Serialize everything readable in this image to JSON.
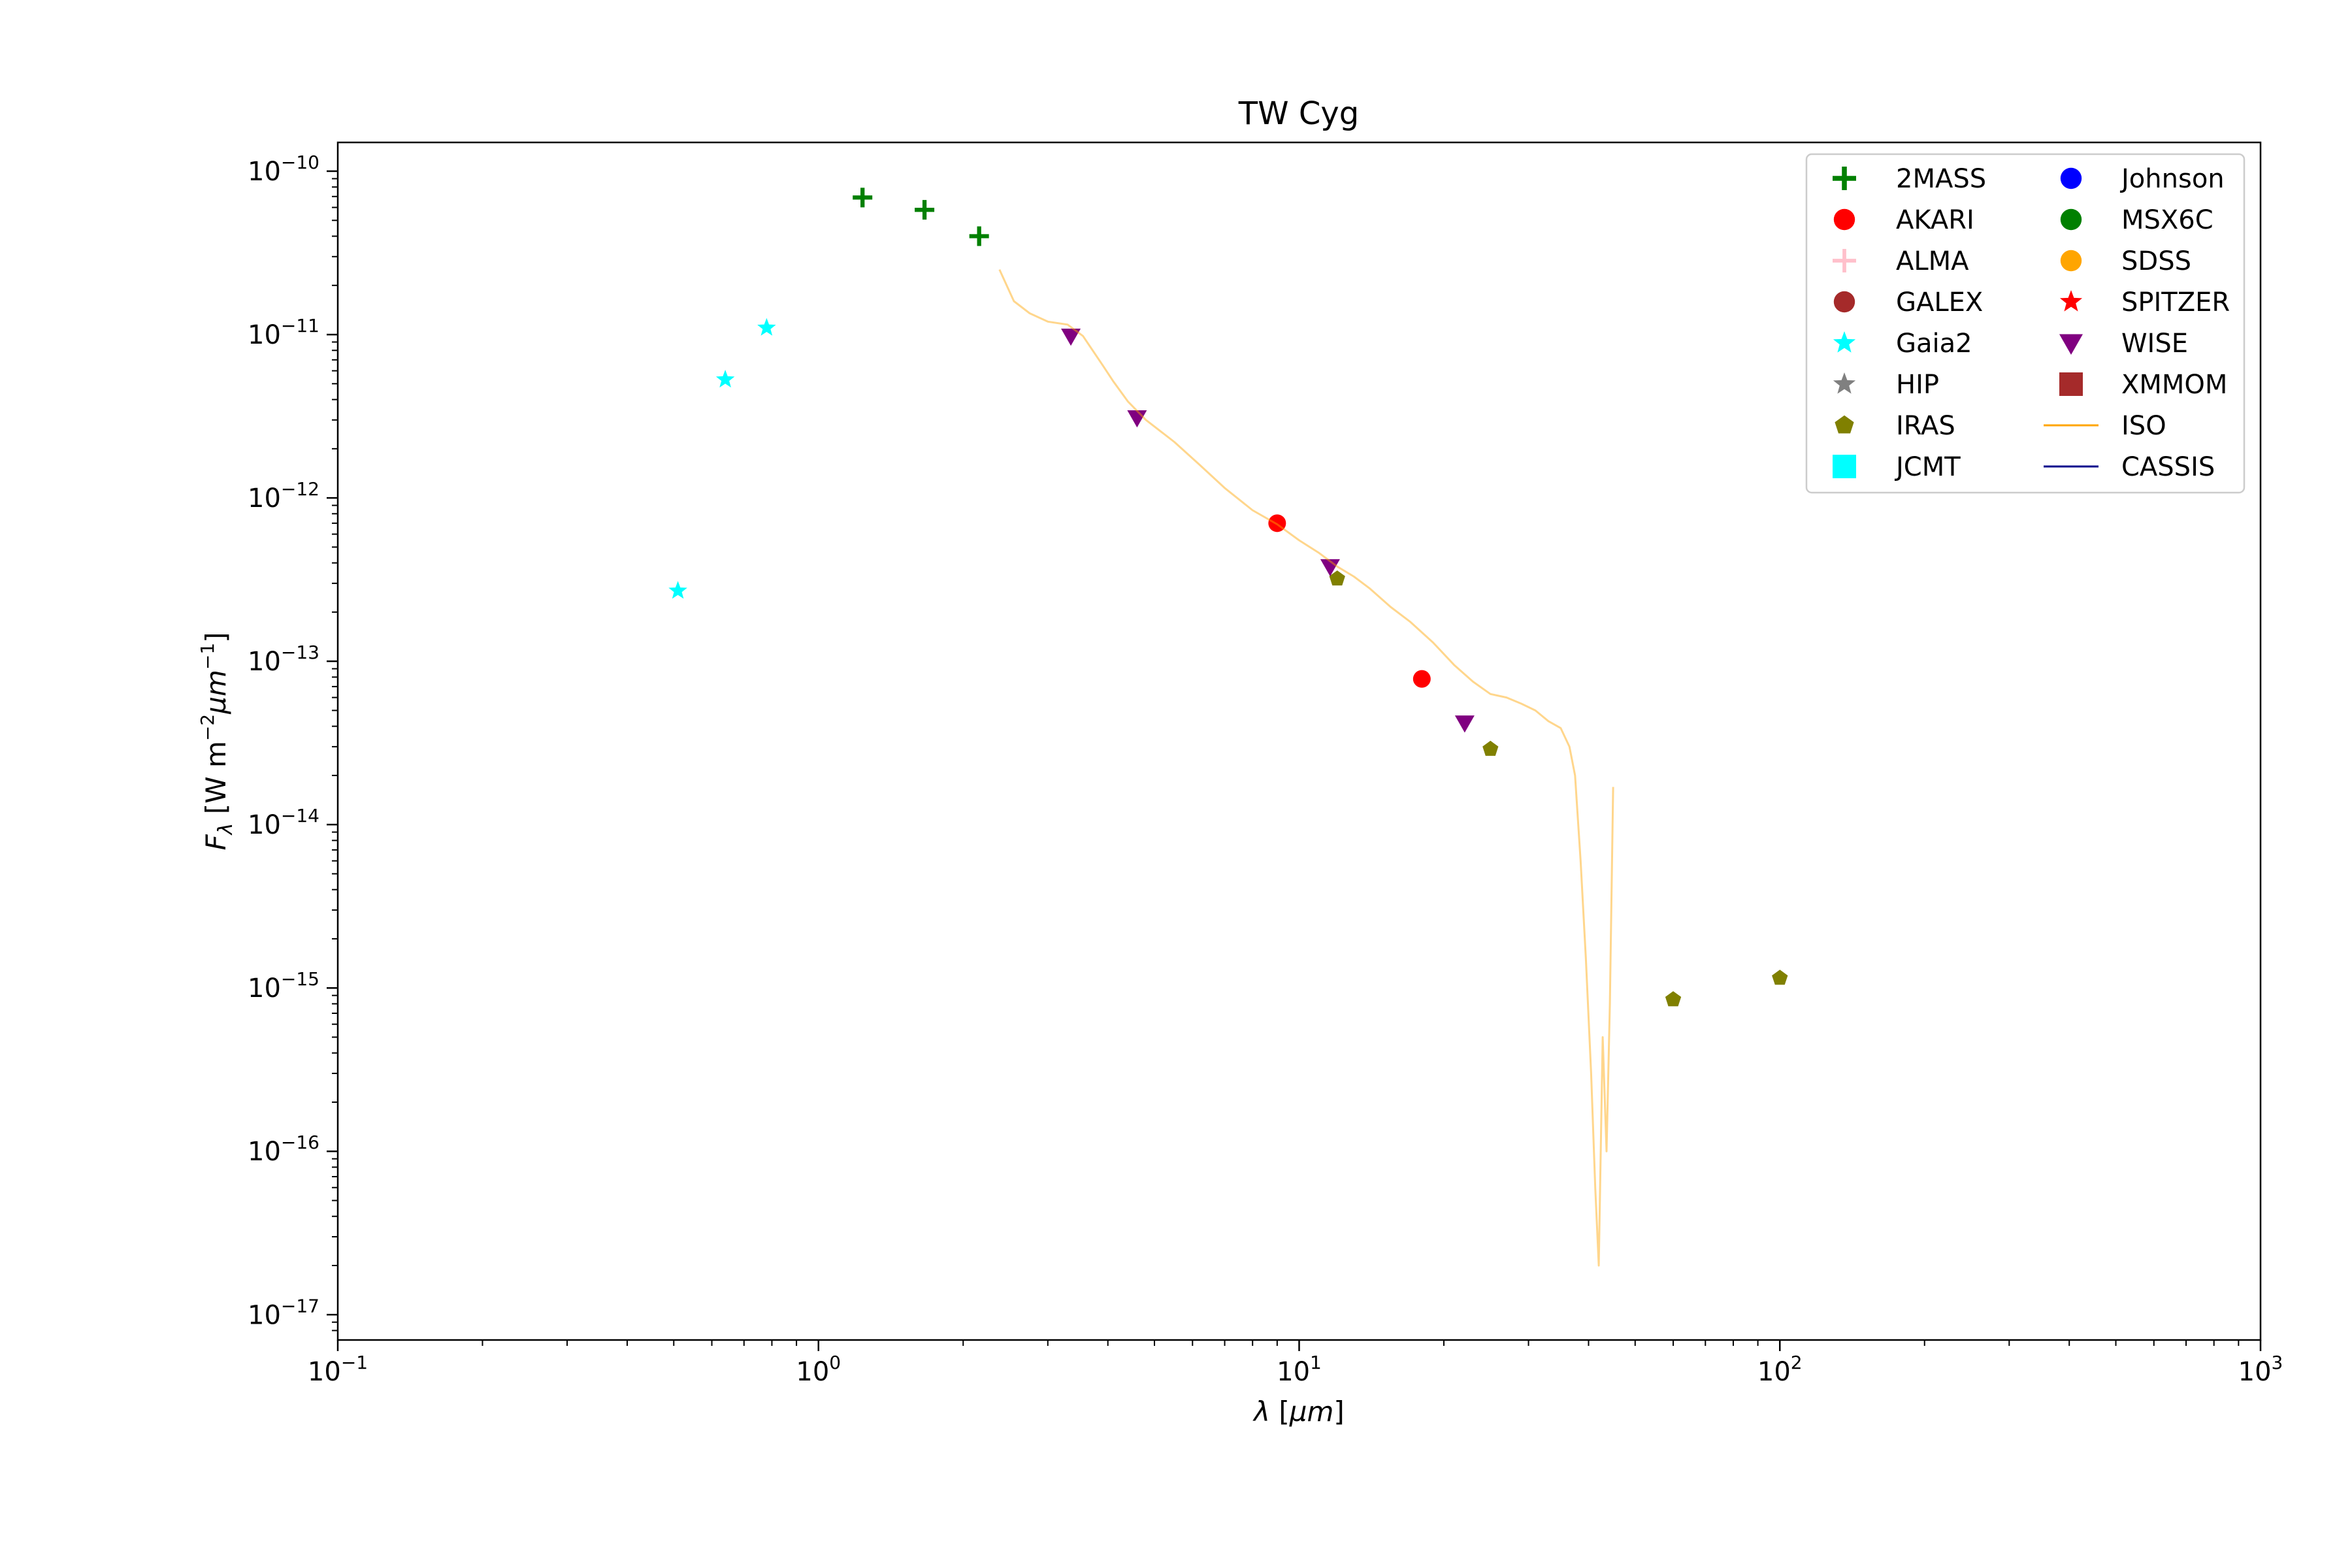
{
  "chart_data": {
    "type": "scatter",
    "title": "TW Cyg",
    "xlabel": "λ [μm]",
    "ylabel": "F_λ [W m⁻² μm⁻¹]",
    "xscale": "log",
    "yscale": "log",
    "xlim": [
      0.1,
      1000
    ],
    "ylim": [
      7e-18,
      1.5e-10
    ],
    "xticks": [
      {
        "value": 0.1,
        "base": "10",
        "exp": "−1"
      },
      {
        "value": 1,
        "base": "10",
        "exp": "0"
      },
      {
        "value": 10,
        "base": "10",
        "exp": "1"
      },
      {
        "value": 100,
        "base": "10",
        "exp": "2"
      },
      {
        "value": 1000,
        "base": "10",
        "exp": "3"
      }
    ],
    "yticks": [
      {
        "value": 1e-10,
        "base": "10",
        "exp": "−10"
      },
      {
        "value": 1e-11,
        "base": "10",
        "exp": "−11"
      },
      {
        "value": 1e-12,
        "base": "10",
        "exp": "−12"
      },
      {
        "value": 1e-13,
        "base": "10",
        "exp": "−13"
      },
      {
        "value": 1e-14,
        "base": "10",
        "exp": "−14"
      },
      {
        "value": 1e-15,
        "base": "10",
        "exp": "−15"
      },
      {
        "value": 1e-16,
        "base": "10",
        "exp": "−16"
      },
      {
        "value": 1e-17,
        "base": "10",
        "exp": "−17"
      }
    ],
    "legend_position": "top-right",
    "legend_columns": 2,
    "series": [
      {
        "name": "2MASS",
        "marker": "plus",
        "color": "#008000",
        "points": [
          [
            1.235,
            6.9e-11
          ],
          [
            1.662,
            5.8e-11
          ],
          [
            2.159,
            4e-11
          ]
        ]
      },
      {
        "name": "AKARI",
        "marker": "circle",
        "color": "#ff0000",
        "points": [
          [
            9.0,
            7e-13
          ],
          [
            18.0,
            7.8e-14
          ]
        ]
      },
      {
        "name": "ALMA",
        "marker": "thinplus",
        "color": "#ffc0cb",
        "points": []
      },
      {
        "name": "GALEX",
        "marker": "circle",
        "color": "#a52a2a",
        "points": []
      },
      {
        "name": "Gaia2",
        "marker": "star",
        "color": "#00ffff",
        "points": [
          [
            0.51,
            2.7e-13
          ],
          [
            0.64,
            5.3e-12
          ],
          [
            0.78,
            1.1e-11
          ]
        ]
      },
      {
        "name": "HIP",
        "marker": "star",
        "color": "#808080",
        "points": []
      },
      {
        "name": "IRAS",
        "marker": "pentagon",
        "color": "#808000",
        "points": [
          [
            12.0,
            3.2e-13
          ],
          [
            25.0,
            2.9e-14
          ],
          [
            60.0,
            8.5e-16
          ],
          [
            100.0,
            1.15e-15
          ]
        ]
      },
      {
        "name": "JCMT",
        "marker": "square",
        "color": "#00ffff",
        "points": []
      },
      {
        "name": "Johnson",
        "marker": "circle",
        "color": "#0000ff",
        "points": []
      },
      {
        "name": "MSX6C",
        "marker": "circle",
        "color": "#008000",
        "points": []
      },
      {
        "name": "SDSS",
        "marker": "circle",
        "color": "#ffa500",
        "points": []
      },
      {
        "name": "SPITZER",
        "marker": "star",
        "color": "#ff0000",
        "points": []
      },
      {
        "name": "WISE",
        "marker": "triangle-down",
        "color": "#800080",
        "points": [
          [
            3.35,
            9.8e-12
          ],
          [
            4.6,
            3.1e-12
          ],
          [
            11.6,
            3.8e-13
          ],
          [
            22.1,
            4.2e-14
          ]
        ]
      },
      {
        "name": "XMMOM",
        "marker": "square",
        "color": "#a52a2a",
        "points": []
      },
      {
        "name": "ISO",
        "marker": "line",
        "color": "#ffa500",
        "alpha": 0.45,
        "points": [
          [
            2.38,
            2.5e-11
          ],
          [
            2.55,
            1.6e-11
          ],
          [
            2.75,
            1.35e-11
          ],
          [
            3.0,
            1.2e-11
          ],
          [
            3.3,
            1.15e-11
          ],
          [
            3.55,
            9.8e-12
          ],
          [
            3.9,
            6.5e-12
          ],
          [
            4.1,
            5.2e-12
          ],
          [
            4.4,
            3.9e-12
          ],
          [
            4.8,
            3e-12
          ],
          [
            5.5,
            2.2e-12
          ],
          [
            6.2,
            1.6e-12
          ],
          [
            7.0,
            1.15e-12
          ],
          [
            8.0,
            8.4e-13
          ],
          [
            9.0,
            6.9e-13
          ],
          [
            10.0,
            5.5e-13
          ],
          [
            11.0,
            4.6e-13
          ],
          [
            12.0,
            3.8e-13
          ],
          [
            13.0,
            3.3e-13
          ],
          [
            14.0,
            2.8e-13
          ],
          [
            15.5,
            2.15e-13
          ],
          [
            17.0,
            1.75e-13
          ],
          [
            19.0,
            1.3e-13
          ],
          [
            21.0,
            9.5e-14
          ],
          [
            23.0,
            7.5e-14
          ],
          [
            25.0,
            6.3e-14
          ],
          [
            27.0,
            6e-14
          ],
          [
            29.0,
            5.5e-14
          ],
          [
            31.0,
            5e-14
          ],
          [
            33.0,
            4.3e-14
          ],
          [
            35.0,
            3.9e-14
          ],
          [
            36.5,
            3e-14
          ],
          [
            37.5,
            2e-14
          ],
          [
            38.5,
            6e-15
          ],
          [
            39.5,
            1.5e-15
          ],
          [
            40.5,
            3e-16
          ],
          [
            41.3,
            6e-17
          ],
          [
            42.0,
            2e-17
          ],
          [
            42.8,
            5e-16
          ],
          [
            43.6,
            1e-16
          ],
          [
            44.3,
            8e-16
          ],
          [
            45.0,
            1.7e-14
          ]
        ]
      },
      {
        "name": "CASSIS",
        "marker": "line",
        "color": "#00008b",
        "points": []
      }
    ]
  }
}
